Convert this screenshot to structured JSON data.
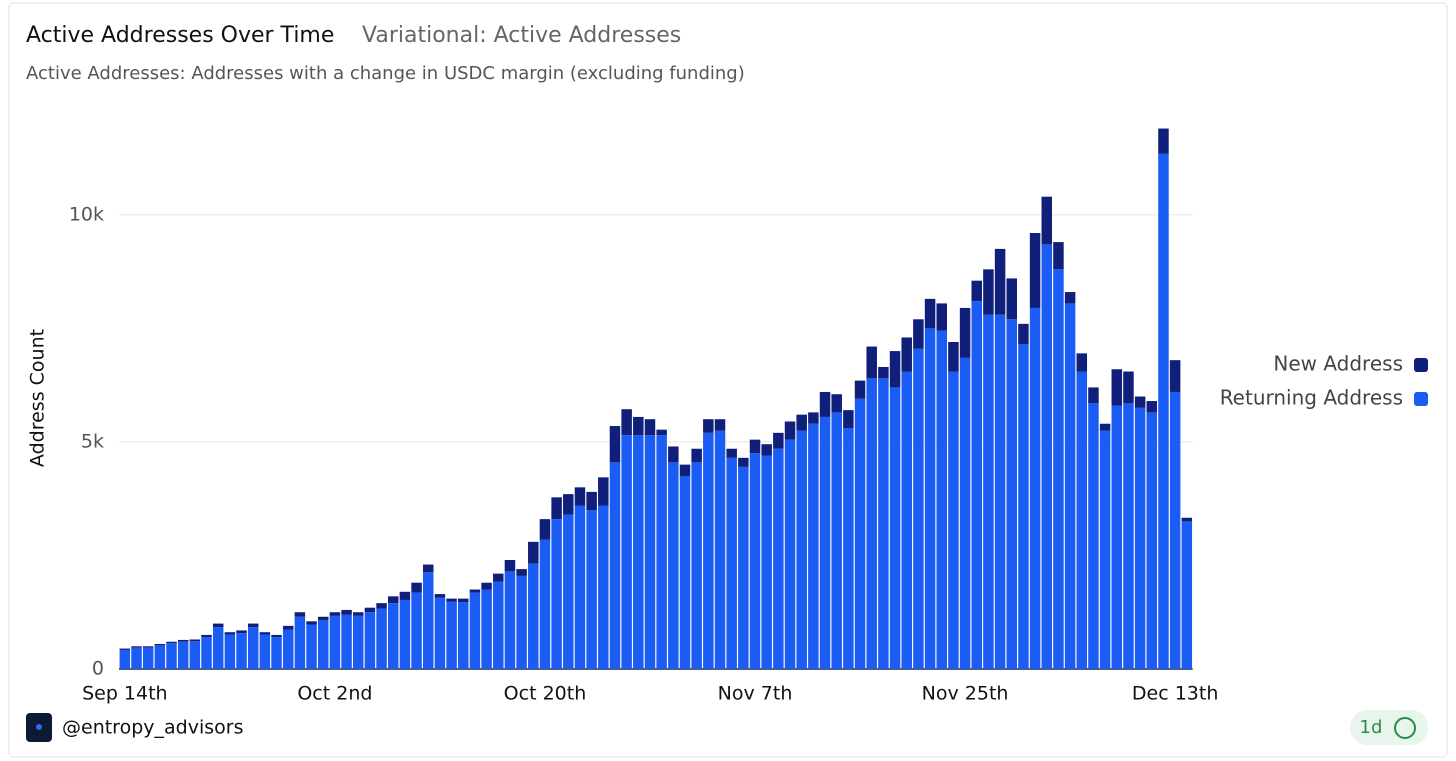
{
  "chart_data": {
    "type": "stacked_bar",
    "title": "Active Addresses Over Time",
    "title_secondary": "Variational: Active Addresses",
    "subtitle": "Active Addresses: Addresses with a change in USDC margin (excluding funding)",
    "y_label": "Address Count",
    "categories": [
      "Sep 14th",
      null,
      null,
      null,
      null,
      null,
      null,
      null,
      null,
      null,
      null,
      null,
      null,
      null,
      null,
      null,
      null,
      null,
      "Oct 2nd",
      null,
      null,
      null,
      null,
      null,
      null,
      null,
      null,
      null,
      null,
      null,
      null,
      null,
      null,
      null,
      null,
      null,
      "Oct 20th",
      null,
      null,
      null,
      null,
      null,
      null,
      null,
      null,
      null,
      null,
      null,
      null,
      null,
      null,
      null,
      null,
      null,
      "Nov 7th",
      null,
      null,
      null,
      null,
      null,
      null,
      null,
      null,
      null,
      null,
      null,
      null,
      null,
      null,
      null,
      null,
      null,
      "Nov 25th",
      null,
      null,
      null,
      null,
      null,
      null,
      null,
      null,
      null,
      null,
      null,
      null,
      null,
      null,
      null,
      null,
      null,
      "Dec 13th",
      null
    ],
    "series": [
      {
        "name": "New Address",
        "color": "#10207a",
        "values": [
          30,
          30,
          30,
          30,
          30,
          40,
          40,
          50,
          80,
          50,
          60,
          80,
          50,
          50,
          80,
          100,
          70,
          70,
          80,
          100,
          80,
          100,
          120,
          150,
          180,
          220,
          170,
          80,
          70,
          80,
          70,
          150,
          180,
          250,
          150,
          480,
          450,
          480,
          450,
          400,
          400,
          620,
          800,
          570,
          400,
          350,
          120,
          350,
          250,
          300,
          300,
          250,
          200,
          200,
          300,
          250,
          350,
          400,
          350,
          250,
          550,
          400,
          400,
          400,
          700,
          250,
          800,
          750,
          650,
          650,
          600,
          650,
          1100,
          450,
          1000,
          1450,
          900,
          450,
          1650,
          1050,
          600,
          250,
          400,
          350,
          150,
          800,
          700,
          250,
          250,
          550,
          700,
          80
        ]
      },
      {
        "name": "Returning Address",
        "color": "#1b5cf5",
        "values": [
          420,
          470,
          470,
          520,
          570,
          600,
          610,
          700,
          920,
          760,
          790,
          920,
          760,
          700,
          870,
          1150,
          980,
          1080,
          1170,
          1200,
          1170,
          1250,
          1330,
          1450,
          1520,
          1680,
          2130,
          1570,
          1480,
          1470,
          1680,
          1750,
          1920,
          2150,
          2050,
          2320,
          2850,
          3300,
          3400,
          3600,
          3500,
          3600,
          4550,
          5150,
          5150,
          5150,
          5150,
          4550,
          4250,
          4550,
          5200,
          5250,
          4650,
          4450,
          4750,
          4700,
          4850,
          5050,
          5250,
          5400,
          5550,
          5650,
          5300,
          5950,
          6400,
          6400,
          6200,
          6550,
          7050,
          7500,
          7450,
          6550,
          6850,
          8100,
          7800,
          7800,
          7700,
          7150,
          7950,
          9350,
          8800,
          8050,
          6550,
          5850,
          5250,
          5800,
          5850,
          5750,
          5650,
          11350,
          6100,
          3250
        ]
      }
    ],
    "ylim": [
      0,
      12000
    ],
    "yticks": [
      0,
      {
        "value": 5000,
        "label": "5k"
      },
      {
        "value": 10000,
        "label": "10k"
      }
    ],
    "grid": true,
    "legend": "right"
  },
  "footer": {
    "handle": "@entropy_advisors",
    "badge": "1d"
  }
}
